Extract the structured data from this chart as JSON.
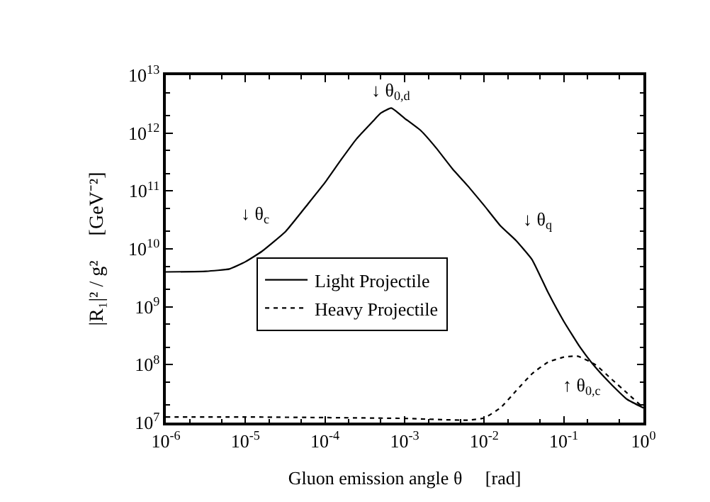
{
  "chart_data": {
    "type": "line",
    "xlabel": "Gluon emission angle θ     [rad]",
    "ylabel": "|R₁|² / g²     [GeV⁻²]",
    "log": "xy",
    "xlim": [
      1e-06,
      1
    ],
    "ylim": [
      10000000.0,
      10000000000000.0
    ],
    "xticks": [
      {
        "value": 1e-06,
        "label": "10$^{-6}$"
      },
      {
        "value": 1e-05,
        "label": "10$^{-5}$"
      },
      {
        "value": 0.0001,
        "label": "10$^{-4}$"
      },
      {
        "value": 0.001,
        "label": "10$^{-3}$"
      },
      {
        "value": 0.01,
        "label": "10$^{-2}$"
      },
      {
        "value": 0.1,
        "label": "10$^{-1}$"
      },
      {
        "value": 1,
        "label": "10$^{0}$"
      }
    ],
    "yticks": [
      {
        "value": 10000000.0,
        "label": "10$^{7}$"
      },
      {
        "value": 100000000.0,
        "label": "10$^{8}$"
      },
      {
        "value": 1000000000.0,
        "label": "10$^{9}$"
      },
      {
        "value": 10000000000.0,
        "label": "10$^{10}$"
      },
      {
        "value": 100000000000.0,
        "label": "10$^{11}$"
      },
      {
        "value": 1000000000000.0,
        "label": "10$^{12}$"
      },
      {
        "value": 10000000000000.0,
        "label": "10$^{13}$"
      }
    ],
    "legend": "center left",
    "marker": "none",
    "series": [
      {
        "name": "Light Projectile",
        "color": "#000000",
        "line_style": "solid",
        "x": [
          1e-06,
          3.2e-06,
          6.3e-06,
          1e-05,
          1.6e-05,
          3.2e-05,
          6.3e-05,
          0.0001,
          0.00016,
          0.00025,
          0.0004,
          0.0005,
          0.00068,
          0.001,
          0.0016,
          0.0025,
          0.004,
          0.0063,
          0.01,
          0.016,
          0.025,
          0.04,
          0.063,
          0.1,
          0.16,
          0.25,
          0.4,
          0.63,
          1
        ],
        "values": [
          4000000000.0,
          4100000000.0,
          4500000000.0,
          6000000000.0,
          9000000000.0,
          20000000000.0,
          63000000000.0,
          140000000000.0,
          350000000000.0,
          800000000000.0,
          1600000000000.0,
          2200000000000.0,
          2700000000000.0,
          1800000000000.0,
          1100000000000.0,
          550000000000.0,
          240000000000.0,
          120000000000.0,
          56000000000.0,
          25000000000.0,
          14000000000.0,
          6500000000.0,
          1800000000.0,
          560000000.0,
          200000000.0,
          90000000.0,
          45000000.0,
          25000000.0,
          18000000.0
        ]
      },
      {
        "name": "Heavy Projectile",
        "color": "#000000",
        "line_style": "dotted",
        "x": [
          1e-06,
          1e-05,
          0.0001,
          0.001,
          0.0032,
          0.0063,
          0.01,
          0.016,
          0.025,
          0.04,
          0.063,
          0.1,
          0.15,
          0.25,
          0.4,
          0.63,
          1
        ],
        "values": [
          12500000.0,
          12500000.0,
          12200000.0,
          11800000.0,
          11200000.0,
          11000000.0,
          12000000.0,
          18000000.0,
          35000000.0,
          70000000.0,
          110000000.0,
          135000000.0,
          140000000.0,
          100000000.0,
          56000000.0,
          32000000.0,
          18000000.0
        ]
      }
    ],
    "annotations": [
      "↓ θ$_{c}$",
      "↓ θ$_{0,d}$",
      "↓ θ$_{q}$",
      "↑ θ$_{0,c}$"
    ]
  }
}
